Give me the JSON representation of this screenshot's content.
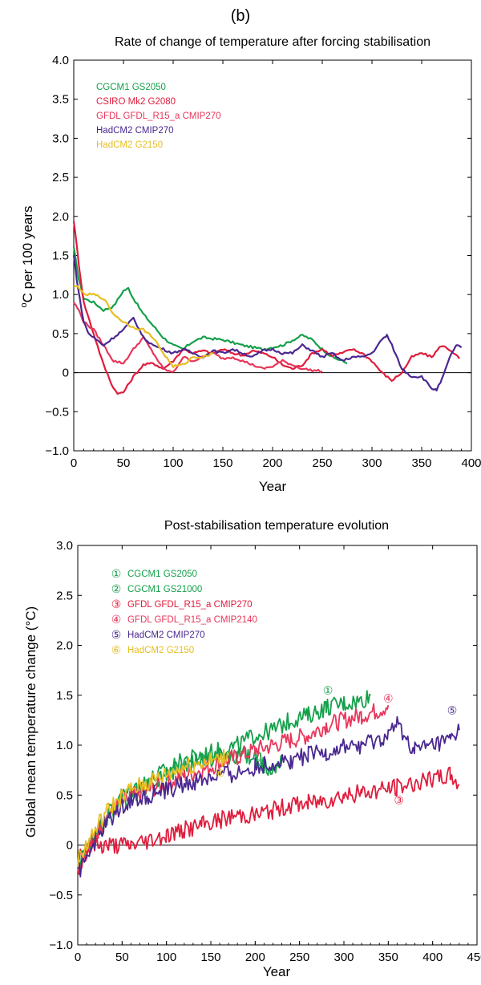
{
  "figure": {
    "panel_label": "(b)"
  },
  "chart_data": [
    {
      "type": "line",
      "title": "Rate of change of temperature after forcing stabilisation",
      "xlabel": "Year",
      "ylabel_base": "C per 100 years",
      "ylabel_sup": "o",
      "xlim": [
        0,
        400
      ],
      "ylim": [
        -1.0,
        4.0
      ],
      "xticks": [
        0,
        50,
        100,
        150,
        200,
        250,
        300,
        350,
        400
      ],
      "xtick_labels": [
        "0",
        "50",
        "100",
        "150",
        "200",
        "250",
        "300",
        "350",
        "400"
      ],
      "yticks": [
        -1.0,
        -0.5,
        0,
        0.5,
        1.0,
        1.5,
        2.0,
        2.5,
        3.0,
        3.5,
        4.0
      ],
      "ytick_labels": [
        "−1.0",
        "−0.5",
        "0",
        "0.5",
        "1.0",
        "1.5",
        "2.0",
        "2.5",
        "3.0",
        "3.5",
        "4.0"
      ],
      "zero_line": true,
      "grid": false,
      "legend_position": "top-left",
      "series": [
        {
          "name": "CGCM1 GS2050",
          "color": "#14a04a",
          "x": [
            0,
            5,
            10,
            20,
            30,
            40,
            50,
            55,
            60,
            70,
            80,
            90,
            100,
            110,
            120,
            130,
            150,
            170,
            190,
            210,
            230,
            240,
            250,
            260,
            270,
            275
          ],
          "y": [
            1.6,
            1.2,
            0.95,
            0.9,
            0.8,
            0.85,
            1.05,
            1.08,
            0.95,
            0.75,
            0.6,
            0.45,
            0.35,
            0.3,
            0.4,
            0.45,
            0.42,
            0.35,
            0.3,
            0.35,
            0.48,
            0.42,
            0.3,
            0.2,
            0.15,
            0.12
          ]
        },
        {
          "name": "CSIRO  Mk2 G2080",
          "color": "#e01c3c",
          "x": [
            0,
            5,
            10,
            20,
            30,
            40,
            45,
            50,
            60,
            70,
            80,
            90,
            100,
            110,
            120,
            130,
            140,
            150,
            160,
            170,
            180,
            190,
            200,
            210,
            220,
            230,
            240,
            250,
            260,
            270,
            280,
            290,
            300,
            310,
            320,
            330,
            340,
            350,
            360,
            370,
            380,
            388
          ],
          "y": [
            1.95,
            1.4,
            0.9,
            0.5,
            0.1,
            -0.2,
            -0.27,
            -0.25,
            -0.05,
            0.1,
            0.12,
            0.05,
            0.15,
            0.3,
            0.25,
            0.28,
            0.25,
            0.3,
            0.25,
            0.22,
            0.28,
            0.25,
            0.2,
            0.1,
            0.05,
            0.1,
            0.25,
            0.3,
            0.22,
            0.25,
            0.3,
            0.25,
            0.15,
            0.0,
            -0.1,
            0.0,
            0.2,
            0.25,
            0.2,
            0.35,
            0.28,
            0.18
          ]
        },
        {
          "name": "GFDL    GFDL_R15_a CMIP270",
          "color": "#e8365a",
          "x": [
            0,
            5,
            10,
            20,
            30,
            40,
            50,
            60,
            70,
            80,
            90,
            100,
            110,
            120,
            130,
            140,
            150,
            160,
            170,
            180,
            190,
            200,
            210,
            220,
            230,
            240,
            250
          ],
          "y": [
            0.9,
            0.8,
            0.65,
            0.55,
            0.35,
            0.15,
            0.12,
            0.3,
            0.45,
            0.25,
            0.05,
            0.0,
            0.2,
            0.15,
            0.2,
            0.25,
            0.18,
            0.2,
            0.15,
            0.1,
            0.05,
            0.08,
            0.15,
            0.1,
            0.05,
            0.03,
            0.02
          ]
        },
        {
          "name": "HadCM2 CMIP270",
          "color": "#4a2890",
          "x": [
            0,
            3,
            6,
            10,
            15,
            20,
            30,
            40,
            50,
            60,
            70,
            80,
            90,
            100,
            110,
            120,
            130,
            140,
            150,
            160,
            170,
            180,
            190,
            200,
            210,
            220,
            230,
            240,
            250,
            260,
            270,
            280,
            290,
            300,
            310,
            315,
            320,
            330,
            340,
            350,
            360,
            365,
            370,
            380,
            385,
            390
          ],
          "y": [
            1.5,
            1.2,
            0.95,
            0.65,
            0.5,
            0.45,
            0.35,
            0.45,
            0.55,
            0.7,
            0.45,
            0.35,
            0.3,
            0.25,
            0.3,
            0.25,
            0.2,
            0.28,
            0.25,
            0.3,
            0.25,
            0.2,
            0.28,
            0.3,
            0.25,
            0.25,
            0.35,
            0.28,
            0.2,
            0.25,
            0.15,
            0.2,
            0.2,
            0.25,
            0.42,
            0.48,
            0.35,
            0.05,
            -0.05,
            -0.05,
            -0.2,
            -0.22,
            -0.1,
            0.25,
            0.35,
            0.32
          ]
        },
        {
          "name": "HadCM2 G2150",
          "color": "#e6be22",
          "x": [
            0,
            5,
            10,
            20,
            30,
            40,
            50,
            60,
            70,
            80,
            90,
            100,
            110,
            120,
            130,
            140
          ],
          "y": [
            1.1,
            1.1,
            1.0,
            1.0,
            0.95,
            0.75,
            0.65,
            0.58,
            0.55,
            0.45,
            0.25,
            0.08,
            0.1,
            0.2,
            0.2,
            0.25
          ]
        }
      ]
    },
    {
      "type": "line",
      "title": "Post-stabilisation temperature evolution",
      "xlabel": "Year",
      "ylabel": "Global mean temperature change (°C)",
      "xlim": [
        0,
        450
      ],
      "ylim": [
        -1.0,
        3.0
      ],
      "xticks": [
        0,
        50,
        100,
        150,
        200,
        250,
        300,
        350,
        400,
        450
      ],
      "xtick_labels": [
        "0",
        "50",
        "100",
        "150",
        "200",
        "250",
        "300",
        "350",
        "400",
        "450"
      ],
      "yticks": [
        -1.0,
        -0.5,
        0,
        0.5,
        1.0,
        1.5,
        2.0,
        2.5,
        3.0
      ],
      "ytick_labels": [
        "−1.0",
        "−0.5",
        "0",
        "0.5",
        "1.0",
        "1.5",
        "2.0",
        "2.5",
        "3.0"
      ],
      "zero_line": true,
      "grid": false,
      "legend_position": "top-left",
      "series": [
        {
          "name": "CGCM1 GS2050",
          "marker": "①",
          "color": "#14a04a",
          "x": [
            0,
            10,
            20,
            30,
            40,
            50,
            60,
            80,
            100,
            120,
            140,
            160,
            180,
            200,
            220,
            240,
            260,
            280,
            300,
            320,
            330
          ],
          "y": [
            -0.2,
            -0.05,
            0.1,
            0.25,
            0.4,
            0.5,
            0.55,
            0.65,
            0.75,
            0.85,
            0.9,
            0.95,
            1.0,
            1.1,
            1.15,
            1.25,
            1.3,
            1.38,
            1.42,
            1.45,
            1.5
          ]
        },
        {
          "name": "CGCM1 GS21000",
          "marker": "②",
          "color": "#14a04a",
          "x": [
            0,
            10,
            20,
            30,
            40,
            50,
            60,
            80,
            100,
            120,
            140,
            160,
            180,
            200,
            210,
            220,
            230
          ],
          "y": [
            -0.2,
            -0.05,
            0.1,
            0.2,
            0.35,
            0.45,
            0.5,
            0.6,
            0.7,
            0.78,
            0.85,
            0.88,
            0.9,
            0.9,
            0.8,
            0.75,
            0.9
          ]
        },
        {
          "name": "GFDL    GFDL_R15_a CMIP270",
          "marker": "③",
          "color": "#e01c3c",
          "x": [
            0,
            10,
            20,
            30,
            40,
            60,
            80,
            100,
            120,
            140,
            160,
            180,
            200,
            220,
            240,
            260,
            280,
            300,
            320,
            340,
            360,
            380,
            400,
            420,
            430
          ],
          "y": [
            -0.1,
            -0.05,
            0.0,
            0.0,
            0.0,
            0.0,
            0.05,
            0.1,
            0.15,
            0.2,
            0.25,
            0.3,
            0.3,
            0.35,
            0.4,
            0.42,
            0.45,
            0.5,
            0.52,
            0.55,
            0.58,
            0.62,
            0.65,
            0.7,
            0.6
          ]
        },
        {
          "name": "GFDL    GFDL_R15_a CMIP2140",
          "marker": "④",
          "color": "#e8365a",
          "x": [
            0,
            10,
            20,
            30,
            40,
            50,
            60,
            80,
            100,
            120,
            140,
            160,
            180,
            200,
            220,
            240,
            260,
            280,
            300,
            320,
            340,
            350
          ],
          "y": [
            -0.25,
            -0.05,
            0.1,
            0.25,
            0.35,
            0.42,
            0.48,
            0.55,
            0.62,
            0.7,
            0.75,
            0.82,
            0.88,
            0.95,
            1.0,
            1.05,
            1.1,
            1.2,
            1.25,
            1.3,
            1.35,
            1.4
          ]
        },
        {
          "name": "HadCM2 CMIP270",
          "marker": "⑤",
          "color": "#4a2890",
          "x": [
            0,
            10,
            20,
            30,
            40,
            50,
            60,
            80,
            100,
            120,
            140,
            160,
            180,
            200,
            220,
            240,
            260,
            280,
            300,
            320,
            340,
            350,
            360,
            380,
            400,
            420,
            430
          ],
          "y": [
            -0.3,
            -0.1,
            0.05,
            0.2,
            0.3,
            0.4,
            0.45,
            0.5,
            0.55,
            0.6,
            0.65,
            0.7,
            0.72,
            0.78,
            0.82,
            0.85,
            0.9,
            0.92,
            0.98,
            1.0,
            1.05,
            1.1,
            1.2,
            0.95,
            1.0,
            1.05,
            1.15
          ]
        },
        {
          "name": "HadCM2 G2150",
          "marker": "⑥",
          "color": "#e6be22",
          "x": [
            0,
            10,
            20,
            30,
            40,
            50,
            60,
            80,
            100,
            120,
            140,
            160,
            170
          ],
          "y": [
            -0.15,
            0.0,
            0.15,
            0.3,
            0.4,
            0.48,
            0.55,
            0.62,
            0.7,
            0.78,
            0.82,
            0.85,
            0.9
          ]
        }
      ]
    }
  ]
}
